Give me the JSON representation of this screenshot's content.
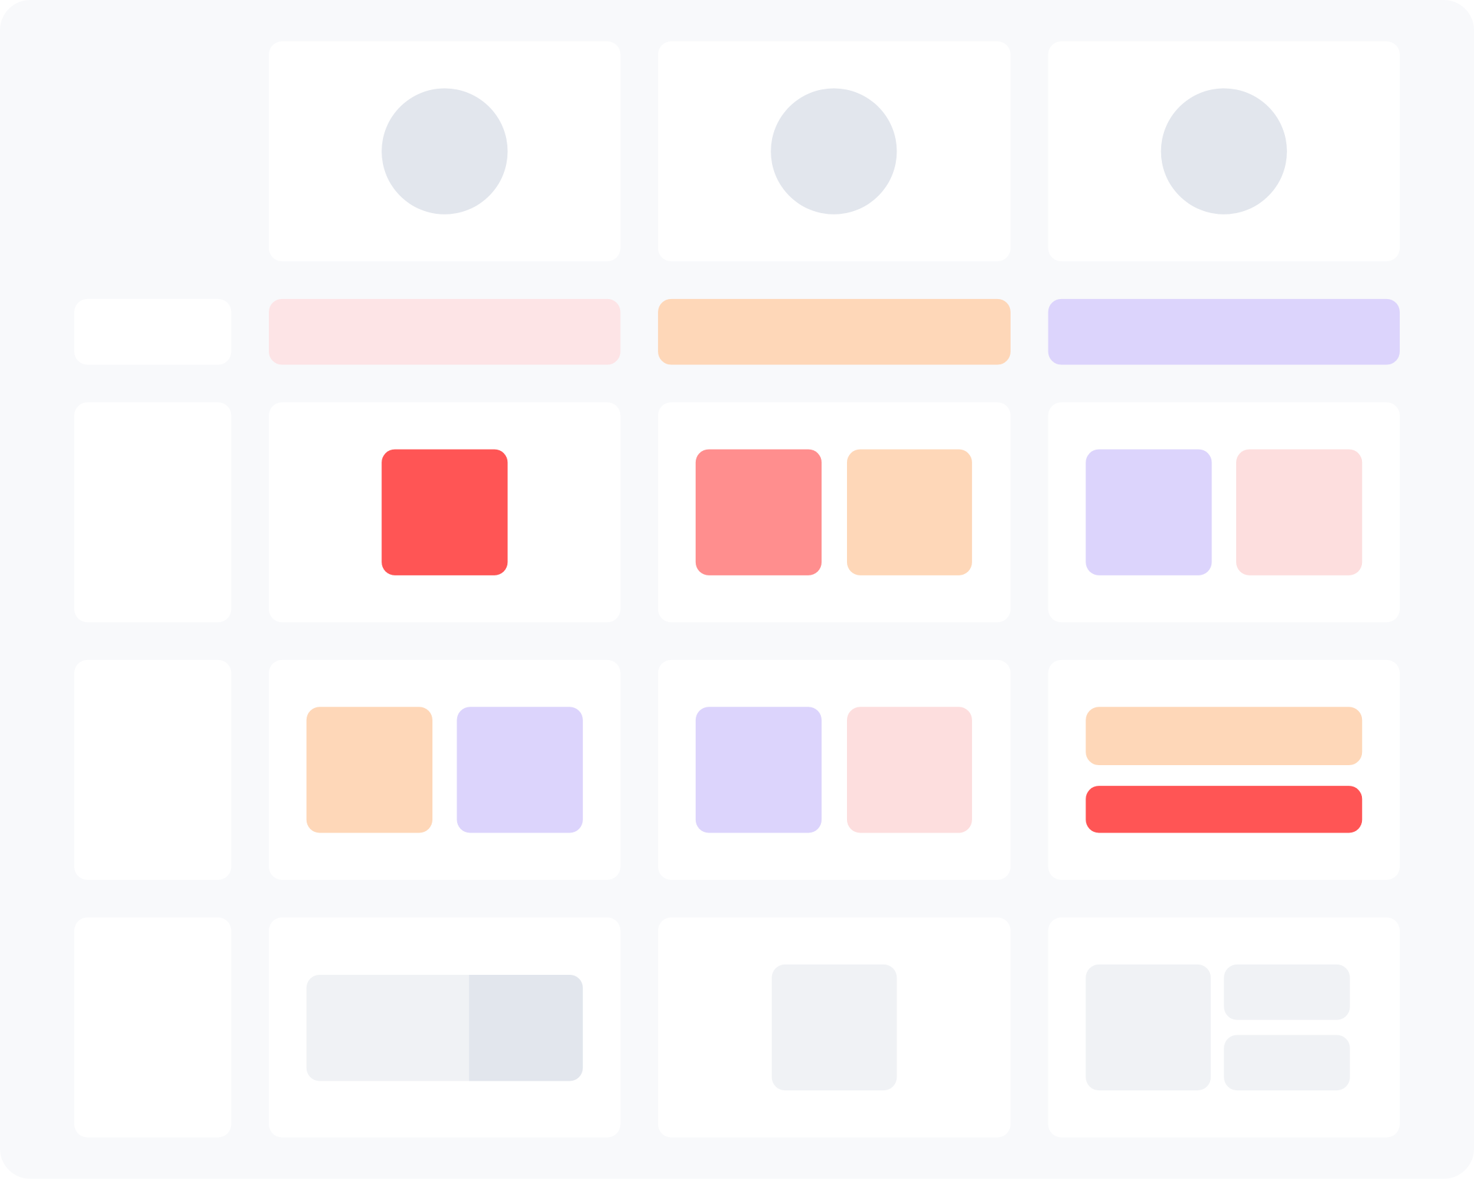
{
  "colors": {
    "background": "#f8f9fb",
    "card": "#ffffff",
    "placeholder": "#e2e6ed",
    "light_gray": "#f0f2f5",
    "pale_pink": "#fde4e6",
    "peach": "#fed7b8",
    "lavender": "#dcd4fc",
    "red": "#ff5555",
    "salmon": "#ff8e8e",
    "blush": "#fddede"
  }
}
